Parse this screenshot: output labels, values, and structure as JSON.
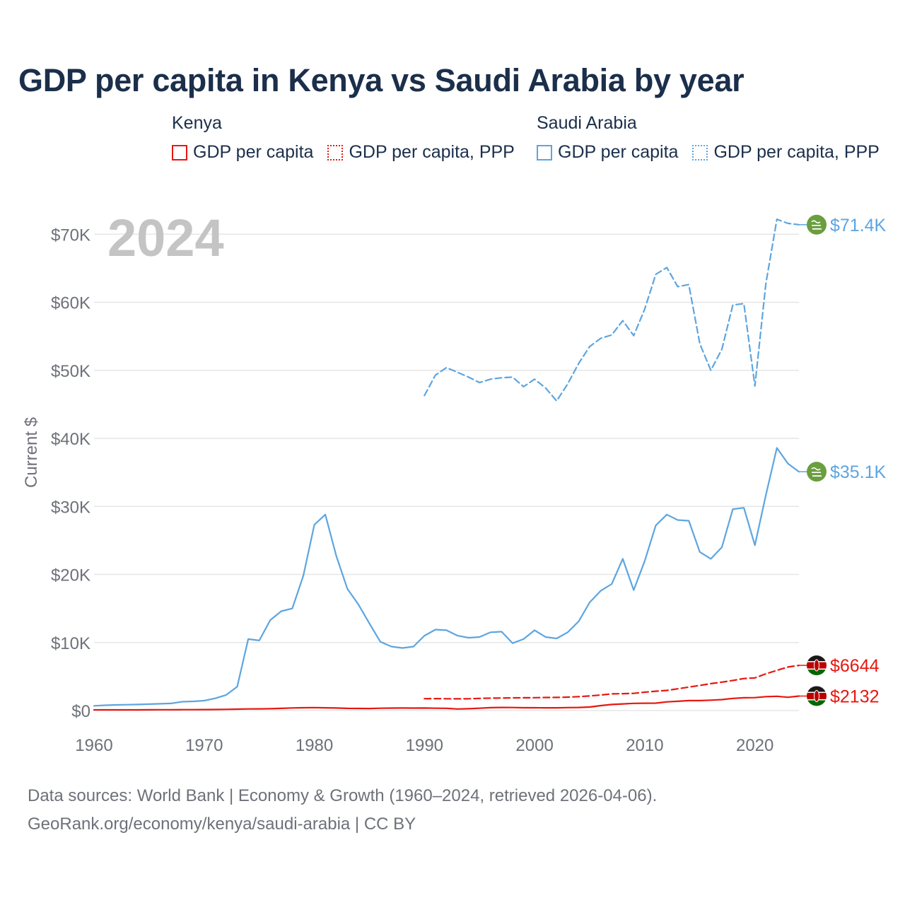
{
  "title": "GDP per capita in Kenya vs Saudi Arabia by year",
  "legend": {
    "kenya": {
      "title": "Kenya",
      "items": [
        {
          "label": "GDP per capita",
          "style": "solid",
          "color": "#e8170f"
        },
        {
          "label": "GDP per capita, PPP",
          "style": "dotted",
          "color": "#e8170f"
        }
      ]
    },
    "saudi": {
      "title": "Saudi Arabia",
      "items": [
        {
          "label": "GDP per capita",
          "style": "solid",
          "color": "#5da5e0"
        },
        {
          "label": "GDP per capita, PPP",
          "style": "dotted",
          "color": "#5da5e0"
        }
      ]
    }
  },
  "year_watermark": "2024",
  "footer": {
    "line1": "Data sources: World Bank | Economy & Growth (1960–2024, retrieved 2026-04-06).",
    "line2": "GeoRank.org/economy/kenya/saudi-arabia | CC BY"
  },
  "chart_data": {
    "type": "line",
    "ylabel": "Current $",
    "xlabel": "",
    "xlim": [
      1960,
      2024
    ],
    "ylim": [
      0,
      72000
    ],
    "x_ticks": [
      1960,
      1970,
      1980,
      1990,
      2000,
      2010,
      2020
    ],
    "y_ticks": [
      {
        "value": 0,
        "label": "$0"
      },
      {
        "value": 10000,
        "label": "$10K"
      },
      {
        "value": 20000,
        "label": "$20K"
      },
      {
        "value": 30000,
        "label": "$30K"
      },
      {
        "value": 40000,
        "label": "$40K"
      },
      {
        "value": 50000,
        "label": "$50K"
      },
      {
        "value": 60000,
        "label": "$60K"
      },
      {
        "value": 70000,
        "label": "$70K"
      }
    ],
    "grid": true,
    "series": [
      {
        "name": "Saudi Arabia GDP per capita, PPP",
        "country": "saudi",
        "color": "#5da5e0",
        "dash": true,
        "end_label": "$71.4K",
        "x": [
          1990,
          1991,
          1992,
          1993,
          1994,
          1995,
          1996,
          1997,
          1998,
          1999,
          2000,
          2001,
          2002,
          2003,
          2004,
          2005,
          2006,
          2007,
          2008,
          2009,
          2010,
          2011,
          2012,
          2013,
          2014,
          2015,
          2016,
          2017,
          2018,
          2019,
          2020,
          2021,
          2022,
          2023,
          2024
        ],
        "values": [
          46300,
          49300,
          50400,
          49700,
          49000,
          48200,
          48700,
          48900,
          49000,
          47600,
          48700,
          47400,
          45500,
          48000,
          51000,
          53500,
          54700,
          55200,
          57300,
          55100,
          59000,
          64100,
          65100,
          62300,
          62600,
          53900,
          50000,
          53100,
          59600,
          59800,
          47700,
          62800,
          72200,
          71600,
          71400
        ]
      },
      {
        "name": "Saudi Arabia GDP per capita",
        "country": "saudi",
        "color": "#5da5e0",
        "dash": false,
        "end_label": "$35.1K",
        "x": [
          1960,
          1961,
          1962,
          1963,
          1964,
          1965,
          1966,
          1967,
          1968,
          1969,
          1970,
          1971,
          1972,
          1973,
          1974,
          1975,
          1976,
          1977,
          1978,
          1979,
          1980,
          1981,
          1982,
          1983,
          1984,
          1985,
          1986,
          1987,
          1988,
          1989,
          1990,
          1991,
          1992,
          1993,
          1994,
          1995,
          1996,
          1997,
          1998,
          1999,
          2000,
          2001,
          2002,
          2003,
          2004,
          2005,
          2006,
          2007,
          2008,
          2009,
          2010,
          2011,
          2012,
          2013,
          2014,
          2015,
          2016,
          2017,
          2018,
          2019,
          2020,
          2021,
          2022,
          2023,
          2024
        ],
        "values": [
          700,
          780,
          830,
          860,
          890,
          950,
          1000,
          1050,
          1300,
          1350,
          1450,
          1800,
          2300,
          3500,
          10500,
          10300,
          13300,
          14600,
          15000,
          19800,
          27300,
          28800,
          22700,
          17900,
          15600,
          12800,
          10100,
          9400,
          9200,
          9400,
          11000,
          11900,
          11800,
          11000,
          10700,
          10800,
          11500,
          11600,
          9900,
          10500,
          11800,
          10800,
          10600,
          11500,
          13100,
          15900,
          17600,
          18600,
          22300,
          17700,
          22000,
          27200,
          28800,
          28000,
          27900,
          23300,
          22300,
          24000,
          29600,
          29800,
          24300,
          31700,
          38600,
          36300,
          35100
        ]
      },
      {
        "name": "Kenya GDP per capita, PPP",
        "country": "kenya",
        "color": "#e8170f",
        "dash": true,
        "end_label": "$6644",
        "x": [
          1990,
          1991,
          1992,
          1993,
          1994,
          1995,
          1996,
          1997,
          1998,
          1999,
          2000,
          2001,
          2002,
          2003,
          2004,
          2005,
          2006,
          2007,
          2008,
          2009,
          2010,
          2011,
          2012,
          2013,
          2014,
          2015,
          2016,
          2017,
          2018,
          2019,
          2020,
          2021,
          2022,
          2023,
          2024
        ],
        "values": [
          1750,
          1760,
          1730,
          1720,
          1740,
          1790,
          1830,
          1840,
          1870,
          1880,
          1890,
          1920,
          1930,
          1970,
          2050,
          2150,
          2290,
          2450,
          2480,
          2520,
          2700,
          2850,
          2960,
          3200,
          3450,
          3700,
          3960,
          4180,
          4430,
          4710,
          4800,
          5400,
          5900,
          6400,
          6644
        ]
      },
      {
        "name": "Kenya GDP per capita",
        "country": "kenya",
        "color": "#e8170f",
        "dash": false,
        "end_label": "$2132",
        "x": [
          1960,
          1961,
          1962,
          1963,
          1964,
          1965,
          1966,
          1967,
          1968,
          1969,
          1970,
          1971,
          1972,
          1973,
          1974,
          1975,
          1976,
          1977,
          1978,
          1979,
          1980,
          1981,
          1982,
          1983,
          1984,
          1985,
          1986,
          1987,
          1988,
          1989,
          1990,
          1991,
          1992,
          1993,
          1994,
          1995,
          1996,
          1997,
          1998,
          1999,
          2000,
          2001,
          2002,
          2003,
          2004,
          2005,
          2006,
          2007,
          2008,
          2009,
          2010,
          2011,
          2012,
          2013,
          2014,
          2015,
          2016,
          2017,
          2018,
          2019,
          2020,
          2021,
          2022,
          2023,
          2024
        ],
        "values": [
          100,
          100,
          100,
          100,
          100,
          110,
          120,
          120,
          130,
          140,
          150,
          160,
          180,
          210,
          240,
          250,
          270,
          320,
          380,
          420,
          440,
          410,
          370,
          320,
          310,
          300,
          340,
          360,
          370,
          360,
          370,
          340,
          330,
          230,
          270,
          340,
          430,
          460,
          450,
          420,
          420,
          410,
          410,
          440,
          460,
          520,
          730,
          890,
          980,
          1060,
          1080,
          1090,
          1280,
          1360,
          1460,
          1460,
          1530,
          1610,
          1790,
          1880,
          1900,
          2050,
          2100,
          1950,
          2132
        ]
      }
    ]
  }
}
